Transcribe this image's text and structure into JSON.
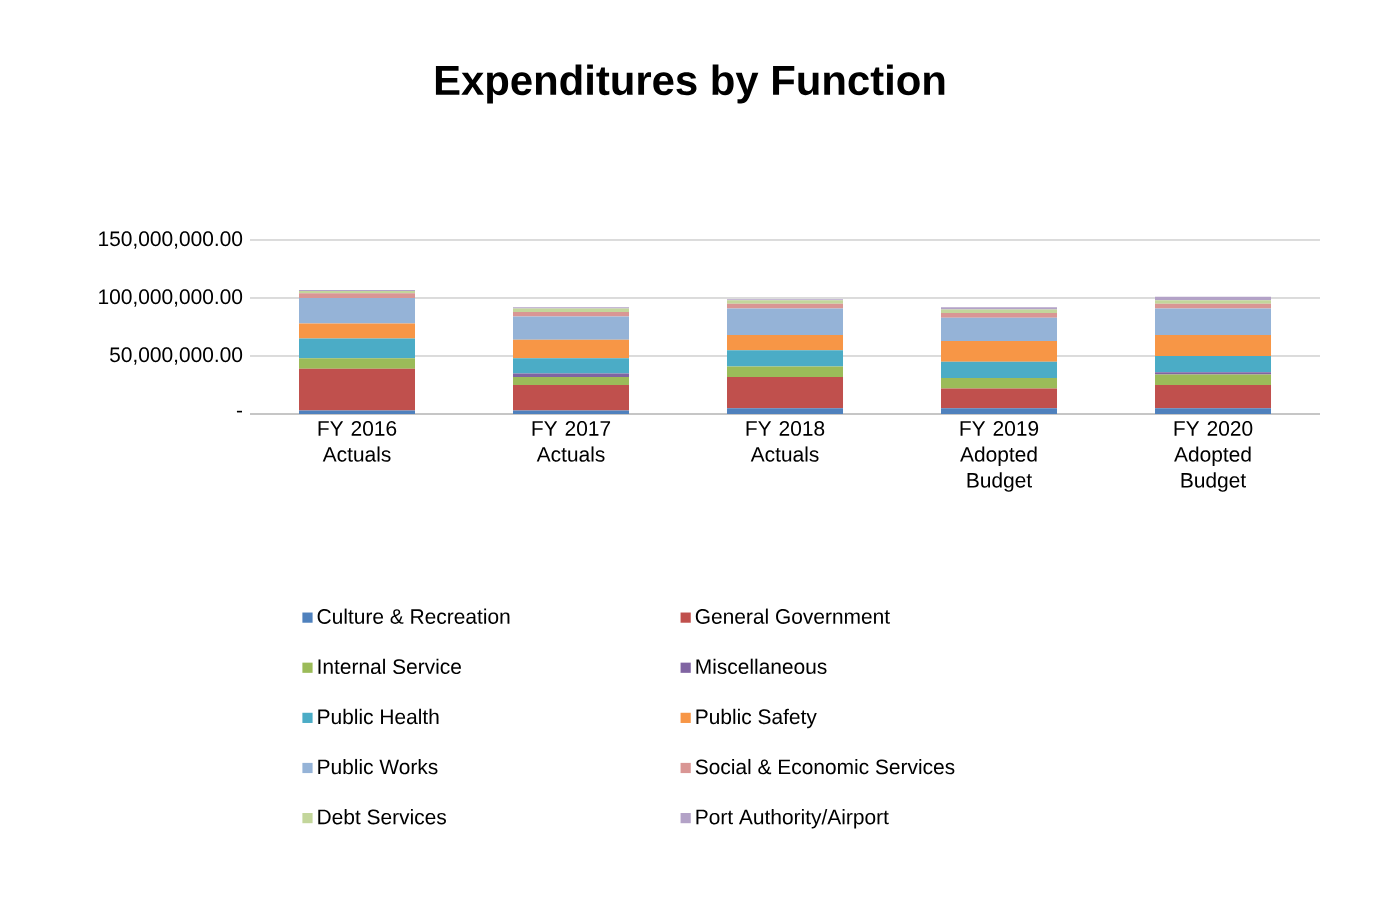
{
  "chart_data": {
    "type": "bar",
    "title": "Expenditures by Function",
    "stacked": true,
    "categories": [
      "FY 2016 Actuals",
      "FY 2017 Actuals",
      "FY 2018 Actuals",
      "FY 2019 Adopted Budget",
      "FY 2020 Adopted Budget"
    ],
    "series": [
      {
        "name": "Culture & Recreation",
        "color": "#4f81bd",
        "values": [
          3000000,
          3000000,
          5000000,
          5000000,
          5000000
        ]
      },
      {
        "name": "General Government",
        "color": "#c0504d",
        "values": [
          36000000,
          22000000,
          27000000,
          17000000,
          20000000
        ]
      },
      {
        "name": "Internal Service",
        "color": "#9bbb59",
        "values": [
          9000000,
          7000000,
          9000000,
          9000000,
          9000000
        ]
      },
      {
        "name": "Miscellaneous",
        "color": "#8064a2",
        "values": [
          0,
          3000000,
          null,
          null,
          2000000
        ]
      },
      {
        "name": "Public Health",
        "color": "#4bacc6",
        "values": [
          17000000,
          13000000,
          14000000,
          14000000,
          14000000
        ]
      },
      {
        "name": "Public Safety",
        "color": "#f79646",
        "values": [
          13000000,
          16000000,
          13000000,
          18000000,
          18000000
        ]
      },
      {
        "name": "Public Works",
        "color": "#95b3d7",
        "values": [
          22000000,
          20000000,
          23000000,
          20000000,
          23000000
        ]
      },
      {
        "name": "Social & Economic Services",
        "color": "#d99694",
        "values": [
          4000000,
          4000000,
          4000000,
          4000000,
          4000000
        ]
      },
      {
        "name": "Debt Services",
        "color": "#c3d69b",
        "values": [
          2000000,
          3000000,
          3000000,
          3000000,
          3000000
        ]
      },
      {
        "name": "Port Authority/Airport",
        "color": "#b3a2c7",
        "values": [
          1000000,
          1000000,
          1000000,
          2000000,
          3000000
        ]
      }
    ],
    "ylim": [
      0,
      150000000
    ],
    "yticks": [
      {
        "value": 0,
        "label": "-"
      },
      {
        "value": 50000000,
        "label": "50,000,000.00"
      },
      {
        "value": 100000000,
        "label": "100,000,000.00"
      },
      {
        "value": 150000000,
        "label": "150,000,000.00"
      }
    ],
    "grid": "y",
    "legend": "bottom"
  }
}
